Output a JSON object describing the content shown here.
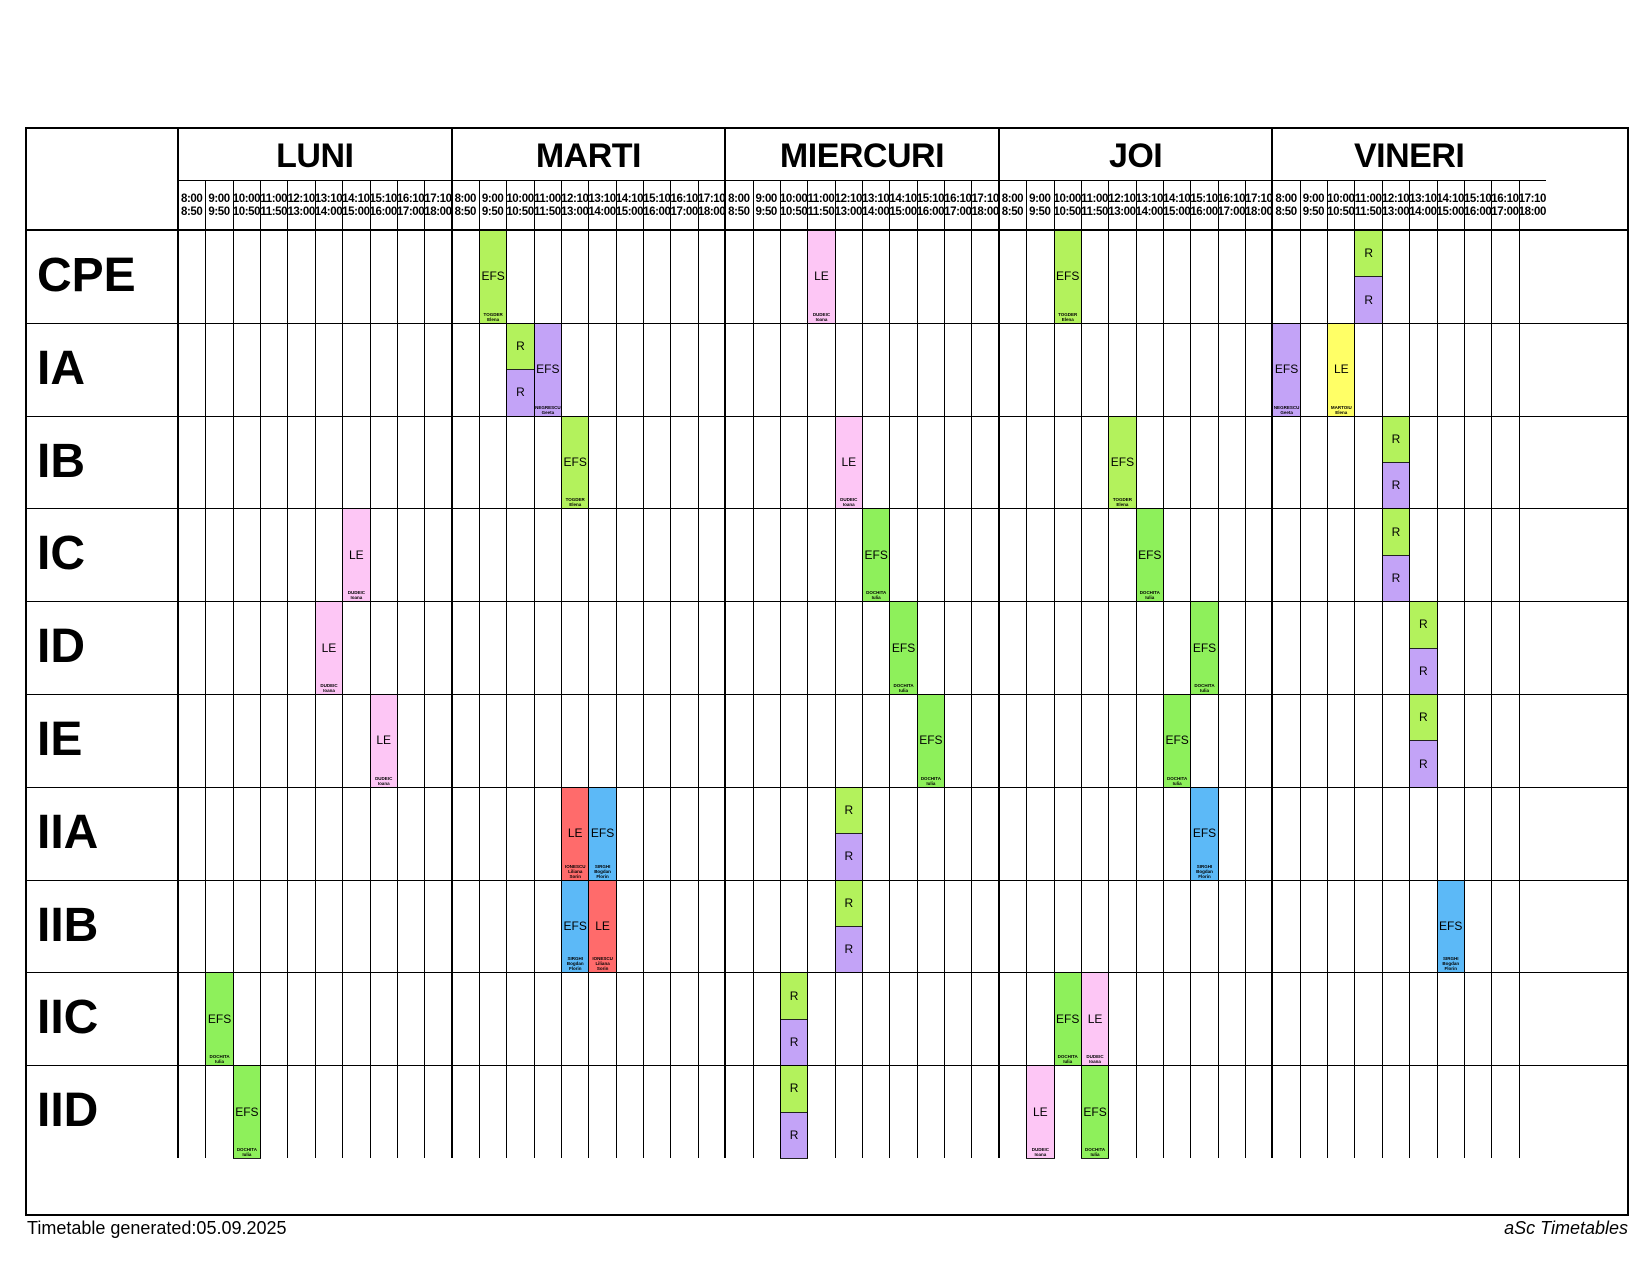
{
  "days": [
    "LUNI",
    "MARTI",
    "MIERCURI",
    "JOI",
    "VINERI"
  ],
  "slots": [
    {
      "start": "8:00",
      "end": "8:50"
    },
    {
      "start": "9:00",
      "end": "9:50"
    },
    {
      "start": "10:00",
      "end": "10:50"
    },
    {
      "start": "11:00",
      "end": "11:50"
    },
    {
      "start": "12:10",
      "end": "13:00"
    },
    {
      "start": "13:10",
      "end": "14:00"
    },
    {
      "start": "14:10",
      "end": "15:00"
    },
    {
      "start": "15:10",
      "end": "16:00"
    },
    {
      "start": "16:10",
      "end": "17:00"
    },
    {
      "start": "17:10",
      "end": "18:00"
    }
  ],
  "classes": [
    "CPE",
    "IA",
    "IB",
    "IC",
    "ID",
    "IE",
    "IIA",
    "IIB",
    "IIC",
    "IID"
  ],
  "colors": {
    "EFS_green": "#b3f25c",
    "EFS_green2": "#8ef05b",
    "R_purple": "#c3a3f7",
    "LE_pink": "#fdc6f5",
    "LE_yellow": "#ffff66",
    "LE_red": "#ff6b6b",
    "EFS_blue": "#5cb9f7"
  },
  "lessons": [
    {
      "cls": 0,
      "day": 1,
      "slot": 1,
      "part": "full",
      "subject": "EFS",
      "teacher": "TOGDER Elena",
      "color": "EFS_green"
    },
    {
      "cls": 0,
      "day": 2,
      "slot": 3,
      "part": "full",
      "subject": "LE",
      "teacher": "DUDEIC Ioana",
      "color": "LE_pink"
    },
    {
      "cls": 0,
      "day": 3,
      "slot": 2,
      "part": "full",
      "subject": "EFS",
      "teacher": "TOGDER Elena",
      "color": "EFS_green"
    },
    {
      "cls": 0,
      "day": 4,
      "slot": 3,
      "part": "top",
      "subject": "R",
      "teacher": "",
      "color": "EFS_green"
    },
    {
      "cls": 0,
      "day": 4,
      "slot": 3,
      "part": "bottom",
      "subject": "R",
      "teacher": "",
      "color": "R_purple"
    },
    {
      "cls": 1,
      "day": 1,
      "slot": 2,
      "part": "top",
      "subject": "R",
      "teacher": "",
      "color": "EFS_green"
    },
    {
      "cls": 1,
      "day": 1,
      "slot": 2,
      "part": "bottom",
      "subject": "R",
      "teacher": "",
      "color": "R_purple"
    },
    {
      "cls": 1,
      "day": 1,
      "slot": 3,
      "part": "full",
      "subject": "EFS",
      "teacher": "NEGRESCU Geeta",
      "color": "R_purple"
    },
    {
      "cls": 1,
      "day": 4,
      "slot": 0,
      "part": "full",
      "subject": "EFS",
      "teacher": "NEGRESCU Geeta",
      "color": "R_purple"
    },
    {
      "cls": 1,
      "day": 4,
      "slot": 2,
      "part": "full",
      "subject": "LE",
      "teacher": "MARTOIU Elena",
      "color": "LE_yellow"
    },
    {
      "cls": 2,
      "day": 1,
      "slot": 4,
      "part": "full",
      "subject": "EFS",
      "teacher": "TOGDER Elena",
      "color": "EFS_green"
    },
    {
      "cls": 2,
      "day": 2,
      "slot": 4,
      "part": "full",
      "subject": "LE",
      "teacher": "DUDEIC Ioana",
      "color": "LE_pink"
    },
    {
      "cls": 2,
      "day": 3,
      "slot": 4,
      "part": "full",
      "subject": "EFS",
      "teacher": "TOGDER Elena",
      "color": "EFS_green"
    },
    {
      "cls": 2,
      "day": 4,
      "slot": 4,
      "part": "top",
      "subject": "R",
      "teacher": "",
      "color": "EFS_green"
    },
    {
      "cls": 2,
      "day": 4,
      "slot": 4,
      "part": "bottom",
      "subject": "R",
      "teacher": "",
      "color": "R_purple"
    },
    {
      "cls": 3,
      "day": 0,
      "slot": 6,
      "part": "full",
      "subject": "LE",
      "teacher": "DUDEIC Ioana",
      "color": "LE_pink"
    },
    {
      "cls": 3,
      "day": 2,
      "slot": 5,
      "part": "full",
      "subject": "EFS",
      "teacher": "DOCHITA Iulia",
      "color": "EFS_green2"
    },
    {
      "cls": 3,
      "day": 3,
      "slot": 5,
      "part": "full",
      "subject": "EFS",
      "teacher": "DOCHITA Iulia",
      "color": "EFS_green2"
    },
    {
      "cls": 3,
      "day": 4,
      "slot": 4,
      "part": "top",
      "subject": "R",
      "teacher": "",
      "color": "EFS_green"
    },
    {
      "cls": 3,
      "day": 4,
      "slot": 4,
      "part": "bottom",
      "subject": "R",
      "teacher": "",
      "color": "R_purple"
    },
    {
      "cls": 4,
      "day": 0,
      "slot": 5,
      "part": "full",
      "subject": "LE",
      "teacher": "DUDEIC Ioana",
      "color": "LE_pink"
    },
    {
      "cls": 4,
      "day": 2,
      "slot": 6,
      "part": "full",
      "subject": "EFS",
      "teacher": "DOCHITA Iulia",
      "color": "EFS_green2"
    },
    {
      "cls": 4,
      "day": 3,
      "slot": 7,
      "part": "full",
      "subject": "EFS",
      "teacher": "DOCHITA Iulia",
      "color": "EFS_green2"
    },
    {
      "cls": 4,
      "day": 4,
      "slot": 5,
      "part": "top",
      "subject": "R",
      "teacher": "",
      "color": "EFS_green"
    },
    {
      "cls": 4,
      "day": 4,
      "slot": 5,
      "part": "bottom",
      "subject": "R",
      "teacher": "",
      "color": "R_purple"
    },
    {
      "cls": 5,
      "day": 0,
      "slot": 7,
      "part": "full",
      "subject": "LE",
      "teacher": "DUDEIC Ioana",
      "color": "LE_pink"
    },
    {
      "cls": 5,
      "day": 2,
      "slot": 7,
      "part": "full",
      "subject": "EFS",
      "teacher": "DOCHITA Iulia",
      "color": "EFS_green2"
    },
    {
      "cls": 5,
      "day": 3,
      "slot": 6,
      "part": "full",
      "subject": "EFS",
      "teacher": "DOCHITA Iulia",
      "color": "EFS_green2"
    },
    {
      "cls": 5,
      "day": 4,
      "slot": 5,
      "part": "top",
      "subject": "R",
      "teacher": "",
      "color": "EFS_green"
    },
    {
      "cls": 5,
      "day": 4,
      "slot": 5,
      "part": "bottom",
      "subject": "R",
      "teacher": "",
      "color": "R_purple"
    },
    {
      "cls": 6,
      "day": 1,
      "slot": 4,
      "part": "full",
      "subject": "LE",
      "teacher": "IONESCU Liliana\nSorin",
      "color": "LE_red"
    },
    {
      "cls": 6,
      "day": 1,
      "slot": 5,
      "part": "full",
      "subject": "EFS",
      "teacher": "SIRGHI Bogdan\nFlorin",
      "color": "EFS_blue"
    },
    {
      "cls": 6,
      "day": 2,
      "slot": 4,
      "part": "top",
      "subject": "R",
      "teacher": "",
      "color": "EFS_green"
    },
    {
      "cls": 6,
      "day": 2,
      "slot": 4,
      "part": "bottom",
      "subject": "R",
      "teacher": "",
      "color": "R_purple"
    },
    {
      "cls": 6,
      "day": 3,
      "slot": 7,
      "part": "full",
      "subject": "EFS",
      "teacher": "SIRGHI Bogdan\nFlorin",
      "color": "EFS_blue"
    },
    {
      "cls": 7,
      "day": 1,
      "slot": 4,
      "part": "full",
      "subject": "EFS",
      "teacher": "SIRGHI Bogdan\nFlorin",
      "color": "EFS_blue"
    },
    {
      "cls": 7,
      "day": 1,
      "slot": 5,
      "part": "full",
      "subject": "LE",
      "teacher": "IONESCU Liliana\nSorin",
      "color": "LE_red"
    },
    {
      "cls": 7,
      "day": 2,
      "slot": 4,
      "part": "top",
      "subject": "R",
      "teacher": "",
      "color": "EFS_green"
    },
    {
      "cls": 7,
      "day": 2,
      "slot": 4,
      "part": "bottom",
      "subject": "R",
      "teacher": "",
      "color": "R_purple"
    },
    {
      "cls": 7,
      "day": 4,
      "slot": 6,
      "part": "full",
      "subject": "EFS",
      "teacher": "SIRGHI Bogdan\nFlorin",
      "color": "EFS_blue"
    },
    {
      "cls": 8,
      "day": 0,
      "slot": 1,
      "part": "full",
      "subject": "EFS",
      "teacher": "DOCHITA Iulia",
      "color": "EFS_green2"
    },
    {
      "cls": 8,
      "day": 2,
      "slot": 2,
      "part": "top",
      "subject": "R",
      "teacher": "",
      "color": "EFS_green"
    },
    {
      "cls": 8,
      "day": 2,
      "slot": 2,
      "part": "bottom",
      "subject": "R",
      "teacher": "",
      "color": "R_purple"
    },
    {
      "cls": 8,
      "day": 3,
      "slot": 2,
      "part": "full",
      "subject": "EFS",
      "teacher": "DOCHITA Iulia",
      "color": "EFS_green2"
    },
    {
      "cls": 8,
      "day": 3,
      "slot": 3,
      "part": "full",
      "subject": "LE",
      "teacher": "DUDEIC Ioana",
      "color": "LE_pink"
    },
    {
      "cls": 9,
      "day": 0,
      "slot": 2,
      "part": "full",
      "subject": "EFS",
      "teacher": "DOCHITA Iulia",
      "color": "EFS_green2"
    },
    {
      "cls": 9,
      "day": 2,
      "slot": 2,
      "part": "top",
      "subject": "R",
      "teacher": "",
      "color": "EFS_green"
    },
    {
      "cls": 9,
      "day": 2,
      "slot": 2,
      "part": "bottom",
      "subject": "R",
      "teacher": "",
      "color": "R_purple"
    },
    {
      "cls": 9,
      "day": 3,
      "slot": 1,
      "part": "full",
      "subject": "LE",
      "teacher": "DUDEIC Ioana",
      "color": "LE_pink"
    },
    {
      "cls": 9,
      "day": 3,
      "slot": 3,
      "part": "full",
      "subject": "EFS",
      "teacher": "DOCHITA Iulia",
      "color": "EFS_green2"
    }
  ],
  "footer": {
    "generated": "Timetable generated:05.09.2025",
    "brand": "aSc Timetables"
  }
}
